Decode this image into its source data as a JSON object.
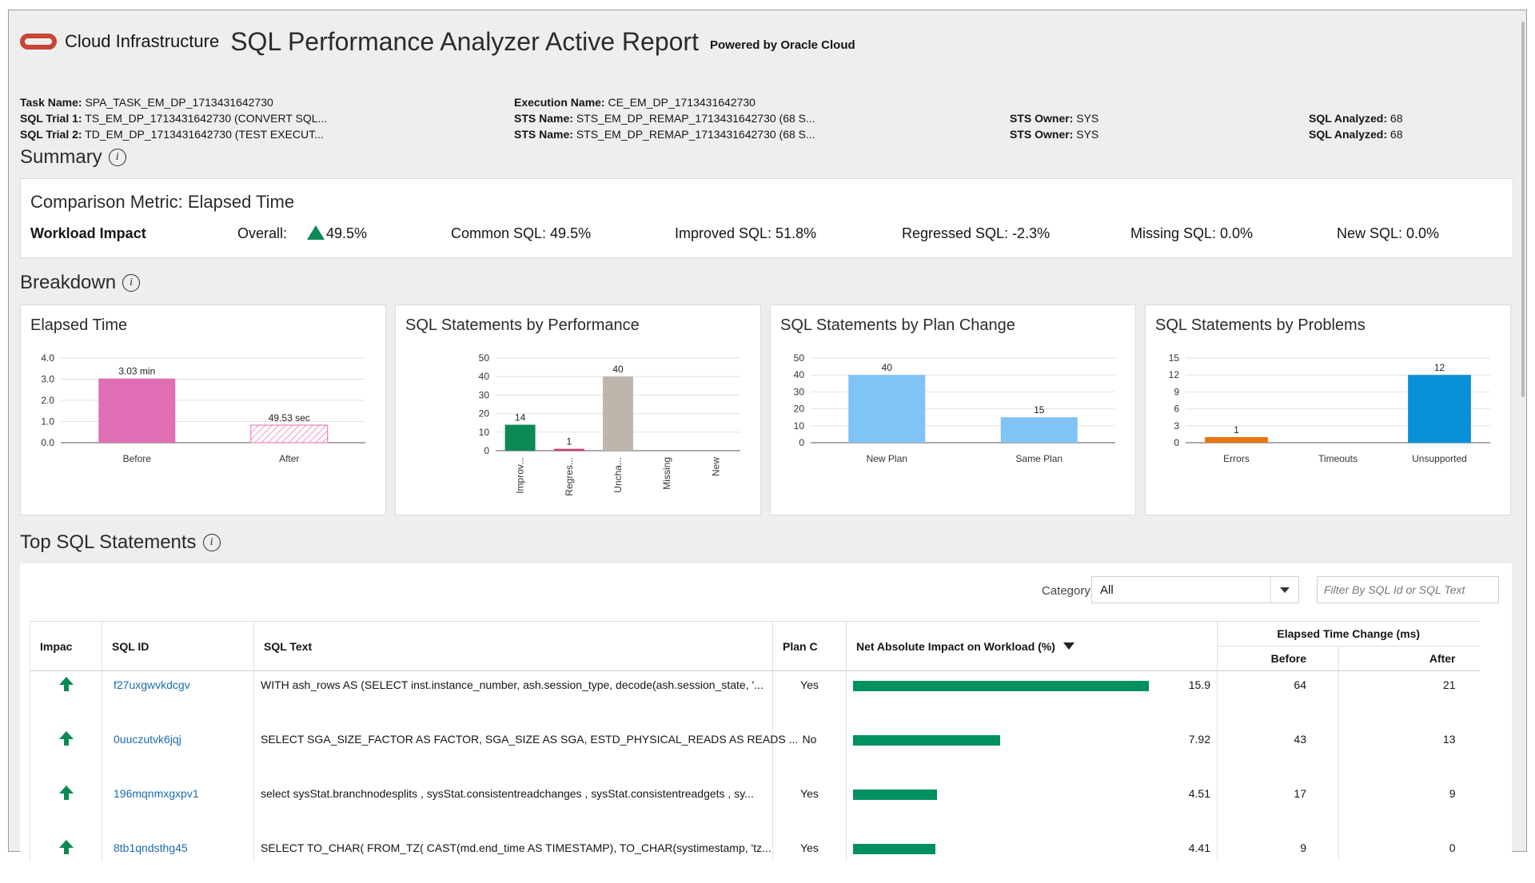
{
  "header": {
    "brand": "Cloud Infrastructure",
    "title": "SQL Performance Analyzer Active Report",
    "powered": "Powered by Oracle Cloud"
  },
  "task_info": {
    "task_name_label": "Task Name:",
    "task_name": "SPA_TASK_EM_DP_1713431642730",
    "trial1_label": "SQL Trial 1:",
    "trial1": "TS_EM_DP_1713431642730 (CONVERT SQL...",
    "trial2_label": "SQL Trial 2:",
    "trial2": "TD_EM_DP_1713431642730 (TEST EXECUT...",
    "exec_name_label": "Execution Name:",
    "exec_name": "CE_EM_DP_1713431642730",
    "sts_name_label": "STS Name:",
    "sts_name1": "STS_EM_DP_REMAP_1713431642730 (68 S...",
    "sts_name2": "STS_EM_DP_REMAP_1713431642730 (68 S...",
    "sts_owner_label": "STS Owner:",
    "sts_owner1": "SYS",
    "sts_owner2": "SYS",
    "sql_analyzed_label": "SQL Analyzed:",
    "sql_analyzed1": "68",
    "sql_analyzed2": "68"
  },
  "summary": {
    "title": "Summary",
    "metric": "Comparison Metric: Elapsed Time",
    "workload_impact_label": "Workload Impact",
    "overall_label": "Overall:",
    "overall": "49.5%",
    "common": "Common SQL: 49.5%",
    "improved": "Improved SQL: 51.8%",
    "regressed": "Regressed SQL: -2.3%",
    "missing": "Missing SQL: 0.0%",
    "new": "New SQL: 0.0%"
  },
  "breakdown": {
    "title": "Breakdown"
  },
  "chart_data": [
    {
      "type": "bar",
      "title": "Elapsed Time",
      "categories": [
        "Before",
        "After"
      ],
      "values": [
        3.03,
        0.83
      ],
      "data_labels": [
        "3.03 min",
        "49.53 sec"
      ],
      "yticks": [
        "0.0",
        "1.0",
        "2.0",
        "3.0",
        "4.0"
      ],
      "ylim": [
        0,
        4
      ],
      "colors": [
        "#e06eb5",
        "#f48fc6"
      ],
      "hatched": [
        false,
        true
      ]
    },
    {
      "type": "bar",
      "title": "SQL Statements by Performance",
      "categories": [
        "Improv...",
        "Regres...",
        "Uncha...",
        "Missing",
        "New"
      ],
      "values": [
        14,
        1,
        40,
        0,
        0
      ],
      "data_labels": [
        "14",
        "1",
        "40",
        "",
        ""
      ],
      "yticks": [
        "0",
        "10",
        "20",
        "30",
        "40",
        "50"
      ],
      "ylim": [
        0,
        50
      ],
      "colors": [
        "#0b8a55",
        "#d4386d",
        "#bdb6ad",
        "#999999",
        "#999999"
      ],
      "rotate_labels": true
    },
    {
      "type": "bar",
      "title": "SQL Statements by Plan Change",
      "categories": [
        "New Plan",
        "Same Plan"
      ],
      "values": [
        40,
        15
      ],
      "data_labels": [
        "40",
        "15"
      ],
      "yticks": [
        "0",
        "10",
        "20",
        "30",
        "40",
        "50"
      ],
      "ylim": [
        0,
        50
      ],
      "colors": [
        "#80c3f5",
        "#80c3f5"
      ]
    },
    {
      "type": "bar",
      "title": "SQL Statements by Problems",
      "categories": [
        "Errors",
        "Timeouts",
        "Unsupported"
      ],
      "values": [
        1,
        0,
        12
      ],
      "data_labels": [
        "1",
        "",
        "12"
      ],
      "yticks": [
        "0",
        "3",
        "6",
        "9",
        "12",
        "15"
      ],
      "ylim": [
        0,
        15
      ],
      "colors": [
        "#e87511",
        "#999999",
        "#0891d8"
      ]
    }
  ],
  "top_sql": {
    "title": "Top SQL Statements",
    "category_label": "Category:",
    "category_value": "All",
    "filter_placeholder": "Filter By SQL Id or SQL Text",
    "columns": {
      "impact": "Impac",
      "sql_id": "SQL ID",
      "sql_text": "SQL Text",
      "plan": "Plan C",
      "net": "Net Absolute Impact on Workload (%)",
      "elapsed": "Elapsed Time Change (ms)",
      "before": "Before",
      "after": "After"
    },
    "rows": [
      {
        "sql_id": "f27uxgwvkdcgv",
        "sql_text": "WITH ash_rows AS (SELECT inst.instance_number, ash.session_type, decode(ash.session_state, '...",
        "plan": "Yes",
        "net": "15.9",
        "net_value": 15.9,
        "before": "64",
        "after": "21"
      },
      {
        "sql_id": "0uuczutvk6jqj",
        "sql_text": "SELECT SGA_SIZE_FACTOR AS FACTOR, SGA_SIZE AS SGA, ESTD_PHYSICAL_READS AS READS ...",
        "plan": "No",
        "net": "7.92",
        "net_value": 7.92,
        "before": "43",
        "after": "13"
      },
      {
        "sql_id": "196mqnmxgxpv1",
        "sql_text": "select sysStat.branchnodesplits , sysStat.consistentreadchanges , sysStat.consistentreadgets , sy...",
        "plan": "Yes",
        "net": "4.51",
        "net_value": 4.51,
        "before": "17",
        "after": "9"
      },
      {
        "sql_id": "8tb1qndsthg45",
        "sql_text": "SELECT TO_CHAR( FROM_TZ( CAST(md.end_time AS TIMESTAMP), TO_CHAR(systimestamp, 'tz...",
        "plan": "Yes",
        "net": "4.41",
        "net_value": 4.41,
        "before": "9",
        "after": "0"
      }
    ]
  }
}
